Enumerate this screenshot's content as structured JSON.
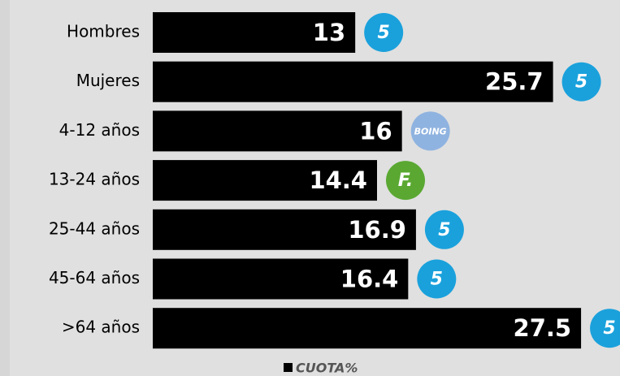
{
  "chart_data": {
    "type": "bar",
    "orientation": "horizontal",
    "categories": [
      "Hombres",
      "Mujeres",
      "4-12 años",
      "13-24 años",
      "25-44 años",
      "45-64 años",
      ">64 años"
    ],
    "series": [
      {
        "name": "CUOTA%",
        "color": "#000000",
        "values": [
          13,
          25.7,
          16,
          14.4,
          16.9,
          16.4,
          27.5
        ]
      }
    ],
    "xlim": [
      0,
      30
    ],
    "annotations": [
      "5",
      "5",
      "BOING",
      "F.",
      "5",
      "5",
      "5"
    ]
  }
}
